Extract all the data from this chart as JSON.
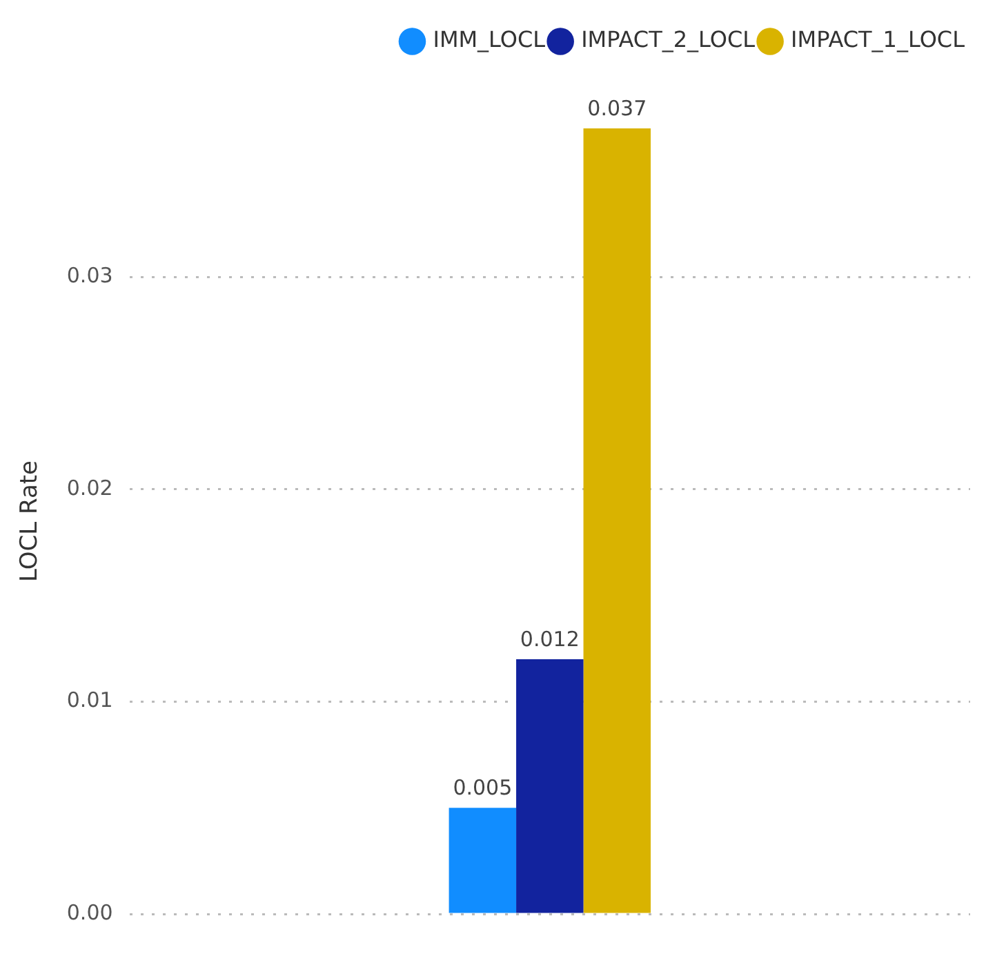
{
  "chart_data": {
    "type": "bar",
    "ylabel": "LOCL Rate",
    "categories": [
      null
    ],
    "series": [
      {
        "name": "IMM_LOCL",
        "color": "#118dff",
        "values": [
          0.005
        ]
      },
      {
        "name": "IMPACT_2_LOCL",
        "color": "#12239e",
        "values": [
          0.012
        ]
      },
      {
        "name": "IMPACT_1_LOCL",
        "color": "#d9b300",
        "values": [
          0.037
        ]
      }
    ],
    "ylim": [
      0,
      0.037
    ],
    "yticks": [
      {
        "value": 0,
        "label": "0.00"
      },
      0.01,
      0.02,
      0.03
    ],
    "grid": "y",
    "legend": "top",
    "data_labels": true
  }
}
